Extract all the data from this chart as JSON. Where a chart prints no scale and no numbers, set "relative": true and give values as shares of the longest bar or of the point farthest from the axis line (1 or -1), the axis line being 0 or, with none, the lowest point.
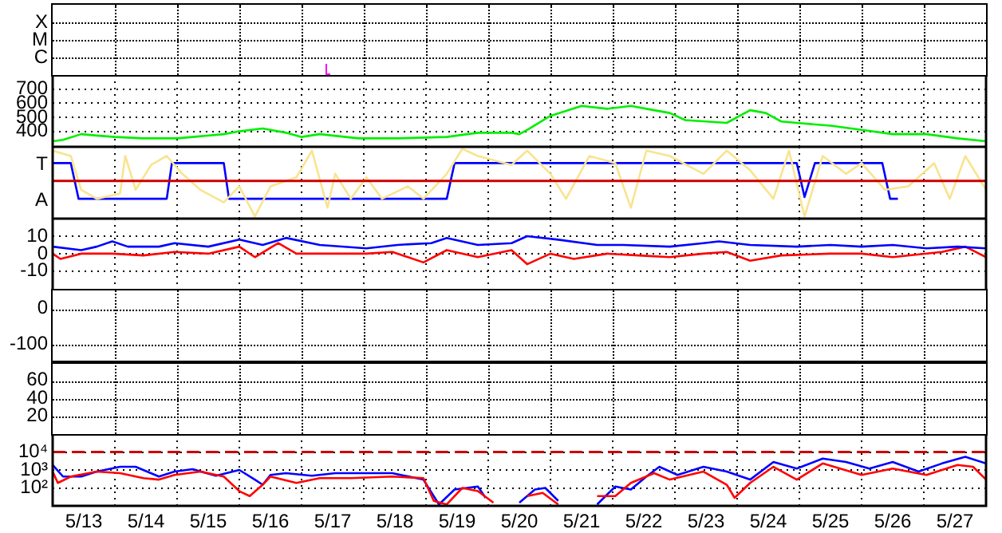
{
  "chart_data": [
    {
      "type": "other",
      "annotations": [
        "X",
        "M",
        "C"
      ]
    },
    {
      "type": "line",
      "grid": true,
      "tick_labels": "y",
      "xlim": [
        "--05-13",
        "--05-28"
      ],
      "xticks": [
        {
          "value": "--05-13",
          "label": null
        },
        {
          "value": "--05-14",
          "label": null
        },
        {
          "value": "--05-15",
          "label": null
        },
        {
          "value": "--05-16",
          "label": null
        },
        {
          "value": "--05-17",
          "label": null
        },
        {
          "value": "--05-18",
          "label": null
        },
        {
          "value": "--05-19",
          "label": null
        },
        {
          "value": "--05-20",
          "label": null
        },
        {
          "value": "--05-21",
          "label": null
        },
        {
          "value": "--05-22",
          "label": null
        },
        {
          "value": "--05-23",
          "label": null
        },
        {
          "value": "--05-24",
          "label": null
        },
        {
          "value": "--05-25",
          "label": null
        },
        {
          "value": "--05-26",
          "label": null
        },
        {
          "value": "--05-27",
          "label": null
        },
        {
          "value": "--05-28",
          "label": null
        }
      ],
      "ylim": [
        290,
        800
      ],
      "yticks": [
        400,
        500,
        600,
        700
      ],
      "series": [
        {
          "color": "#00ee00",
          "x": [
            "--05-13T00:00",
            "--05-13T04:00",
            "--05-13T11:00",
            "--05-13T17:00",
            "--05-14T00:00",
            "--05-14T11:00",
            "--05-15T00:00",
            "--05-15T18:00",
            "--05-16T00:00",
            "--05-16T09:00",
            "--05-16T18:00",
            "--05-17T00:00",
            "--05-17T07:00",
            "--05-17T22:00",
            "--05-18T13:00",
            "--05-19T08:00",
            "--05-19T20:00",
            "--05-20T09:00",
            "--05-20T12:00",
            "--05-20T15:00",
            "--05-21T00:00",
            "--05-21T12:00",
            "--05-21T22:00",
            "--05-22T07:00",
            "--05-22T16:00",
            "--05-22T22:00",
            "--05-23T04:00",
            "--05-23T20:00",
            "--05-24T05:00",
            "--05-24T11:00",
            "--05-24T17:00",
            "--05-24T23:00",
            "--05-25T12:00",
            "--05-26T00:00",
            "--05-26T12:00",
            "--05-27T01:00",
            "--05-27T13:00",
            "--05-28T00:00"
          ],
          "values": [
            330,
            340,
            380,
            370,
            360,
            350,
            350,
            380,
            400,
            420,
            390,
            360,
            380,
            350,
            350,
            360,
            390,
            390,
            380,
            410,
            510,
            580,
            560,
            580,
            550,
            530,
            480,
            460,
            550,
            530,
            470,
            460,
            440,
            410,
            380,
            380,
            350,
            330
          ]
        }
      ]
    },
    {
      "type": "line",
      "relative": true,
      "grid": true,
      "tick_labels": false,
      "annotations": [
        "T",
        "A"
      ],
      "xlim": [
        "--05-13",
        "--05-28"
      ],
      "xticks": [
        {
          "value": "--05-13",
          "label": null
        },
        {
          "value": "--05-14",
          "label": null
        },
        {
          "value": "--05-15",
          "label": null
        },
        {
          "value": "--05-16",
          "label": null
        },
        {
          "value": "--05-17",
          "label": null
        },
        {
          "value": "--05-18",
          "label": null
        },
        {
          "value": "--05-19",
          "label": null
        },
        {
          "value": "--05-20",
          "label": null
        },
        {
          "value": "--05-21",
          "label": null
        },
        {
          "value": "--05-22",
          "label": null
        },
        {
          "value": "--05-23",
          "label": null
        },
        {
          "value": "--05-24",
          "label": null
        },
        {
          "value": "--05-25",
          "label": null
        },
        {
          "value": "--05-26",
          "label": null
        },
        {
          "value": "--05-27",
          "label": null
        },
        {
          "value": "--05-28",
          "label": null
        }
      ],
      "ref_lines": [
        {
          "axis": "y",
          "value": 0,
          "color": "#cc0000"
        }
      ],
      "series": [
        {
          "color": "#f8e490",
          "x": [
            "--05-13T00:00",
            "--05-13T07:00",
            "--05-13T11:00",
            "--05-13T17:00",
            "--05-14T02:00",
            "--05-14T04:00",
            "--05-14T08:00",
            "--05-14T14:00",
            "--05-14T20:00",
            "--05-15T02:00",
            "--05-15T09:00",
            "--05-15T18:00",
            "--05-16T00:00",
            "--05-16T06:00",
            "--05-16T12:00",
            "--05-16T22:00",
            "--05-17T04:00",
            "--05-17T10:00",
            "--05-17T13:00",
            "--05-17T19:00",
            "--05-18T01:00",
            "--05-18T07:00",
            "--05-18T17:00",
            "--05-18T23:00",
            "--05-19T08:00",
            "--05-19T14:00",
            "--05-19T20:00",
            "--05-20T09:00",
            "--05-20T15:00",
            "--05-21T00:00",
            "--05-21T06:00",
            "--05-21T15:00",
            "--05-22T01:00",
            "--05-22T07:00",
            "--05-22T13:00",
            "--05-22T22:00",
            "--05-23T11:00",
            "--05-23T20:00",
            "--05-24T05:00",
            "--05-24T14:00",
            "--05-24T20:00",
            "--05-25T02:00",
            "--05-25T09:00",
            "--05-25T18:00",
            "--05-26T00:00",
            "--05-26T09:00",
            "--05-26T18:00",
            "--05-27T04:00",
            "--05-27T10:00",
            "--05-27T16:00",
            "--05-28T00:00"
          ],
          "values": [
            0.85,
            0.7,
            -0.25,
            -0.5,
            -0.35,
            0.7,
            -0.25,
            0.45,
            0.7,
            0.2,
            -0.25,
            -0.6,
            -0.15,
            -1,
            -0.15,
            0.1,
            0.85,
            -0.75,
            0.2,
            -0.5,
            0.1,
            -0.5,
            -0.15,
            -0.5,
            0.2,
            0.9,
            0.7,
            0.45,
            0.85,
            0.2,
            -0.5,
            0.7,
            0.5,
            -0.75,
            0.85,
            0.7,
            0.2,
            0.85,
            0.3,
            -0.5,
            0.85,
            -1,
            0.7,
            0.2,
            0.5,
            -0.25,
            -0.15,
            0.5,
            -0.5,
            0.7,
            -0.25
          ]
        },
        {
          "color": "#0000ff",
          "x": [
            "--05-13T00:00",
            "--05-13T07:00",
            "--05-13T10:00",
            "--05-14T20:00",
            "--05-14T22:00",
            "--05-15T18:00",
            "--05-15T20:00",
            "--05-19T08:00",
            "--05-19T11:00",
            "--05-24T23:00",
            "--05-25T02:00",
            "--05-25T06:00",
            "--05-26T08:00",
            "--05-26T11:00",
            "--05-26T14:00"
          ],
          "values": [
            0.5,
            0.5,
            -0.5,
            -0.5,
            0.5,
            0.5,
            -0.5,
            -0.5,
            0.5,
            0.5,
            -0.45,
            0.5,
            0.5,
            -0.5,
            -0.5
          ]
        }
      ]
    },
    {
      "type": "line",
      "grid": true,
      "tick_labels": "y",
      "xlim": [
        "--05-13",
        "--05-28"
      ],
      "xticks": [
        {
          "value": "--05-13",
          "label": null
        },
        {
          "value": "--05-14",
          "label": null
        },
        {
          "value": "--05-15",
          "label": null
        },
        {
          "value": "--05-16",
          "label": null
        },
        {
          "value": "--05-17",
          "label": null
        },
        {
          "value": "--05-18",
          "label": null
        },
        {
          "value": "--05-19",
          "label": null
        },
        {
          "value": "--05-20",
          "label": null
        },
        {
          "value": "--05-21",
          "label": null
        },
        {
          "value": "--05-22",
          "label": null
        },
        {
          "value": "--05-23",
          "label": null
        },
        {
          "value": "--05-24",
          "label": null
        },
        {
          "value": "--05-25",
          "label": null
        },
        {
          "value": "--05-26",
          "label": null
        },
        {
          "value": "--05-27",
          "label": null
        },
        {
          "value": "--05-28",
          "label": null
        }
      ],
      "ylim": [
        -21,
        20
      ],
      "yticks": [
        10,
        0,
        -10
      ],
      "series": [
        {
          "color": "#0000ff",
          "x": [
            "--05-13T00:00",
            "--05-13T11:00",
            "--05-13T17:00",
            "--05-13T23:00",
            "--05-14T05:00",
            "--05-14T17:00",
            "--05-14T23:00",
            "--05-15T12:00",
            "--05-16T00:00",
            "--05-16T09:00",
            "--05-16T18:00",
            "--05-17T07:00",
            "--05-18T01:00",
            "--05-18T13:00",
            "--05-19T02:00",
            "--05-19T08:00",
            "--05-19T20:00",
            "--05-20T09:00",
            "--05-20T15:00",
            "--05-21T03:00",
            "--05-21T18:00",
            "--05-22T04:00",
            "--05-22T22:00",
            "--05-23T11:00",
            "--05-23T17:00",
            "--05-24T05:00",
            "--05-24T23:00",
            "--05-25T12:00",
            "--05-26T00:00",
            "--05-26T12:00",
            "--05-27T01:00",
            "--05-27T13:00",
            "--05-28T00:00"
          ],
          "values": [
            4,
            2,
            4,
            7,
            4,
            4,
            6,
            4,
            8,
            5,
            9,
            5,
            3,
            5,
            6,
            9,
            5,
            6,
            10,
            8,
            5,
            5,
            4,
            6,
            7,
            5,
            4,
            5,
            4,
            5,
            3,
            4,
            3
          ]
        },
        {
          "color": "#ff0000",
          "x": [
            "--05-13T00:00",
            "--05-13T03:00",
            "--05-13T11:00",
            "--05-13T23:00",
            "--05-14T11:00",
            "--05-14T23:00",
            "--05-15T12:00",
            "--05-16T00:00",
            "--05-16T06:00",
            "--05-16T15:00",
            "--05-16T22:00",
            "--05-17T07:00",
            "--05-18T01:00",
            "--05-18T11:00",
            "--05-18T23:00",
            "--05-19T08:00",
            "--05-19T20:00",
            "--05-20T09:00",
            "--05-20T15:00",
            "--05-21T00:00",
            "--05-21T09:00",
            "--05-21T22:00",
            "--05-22T10:00",
            "--05-22T22:00",
            "--05-23T11:00",
            "--05-23T20:00",
            "--05-24T05:00",
            "--05-24T17:00",
            "--05-25T12:00",
            "--05-26T00:00",
            "--05-26T12:00",
            "--05-27T07:00",
            "--05-27T16:00",
            "--05-28T00:00"
          ],
          "values": [
            0,
            -3,
            0,
            0,
            -1,
            1,
            0,
            4,
            -2,
            6,
            0,
            0,
            0,
            1,
            -5,
            2,
            -2,
            2,
            -6,
            0,
            -3,
            0,
            -1,
            -2,
            0,
            1,
            -4,
            -1,
            0,
            0,
            -2,
            1,
            4,
            -2
          ]
        }
      ]
    },
    {
      "type": "other",
      "annotations": [
        "0",
        "-100"
      ]
    },
    {
      "type": "other",
      "annotations": [
        "60",
        "40",
        "20"
      ]
    },
    {
      "type": "line",
      "grid": true,
      "log": "y",
      "xlim": [
        "--05-13",
        "--05-28"
      ],
      "xticks": [
        {
          "value": "--05-13",
          "label": null
        },
        {
          "value": "--05-13T12:00",
          "label": "5/13"
        },
        {
          "value": "--05-14",
          "label": null
        },
        {
          "value": "--05-14T12:00",
          "label": "5/14"
        },
        {
          "value": "--05-15",
          "label": null
        },
        {
          "value": "--05-15T12:00",
          "label": "5/15"
        },
        {
          "value": "--05-16",
          "label": null
        },
        {
          "value": "--05-16T12:00",
          "label": "5/16"
        },
        {
          "value": "--05-17",
          "label": null
        },
        {
          "value": "--05-17T12:00",
          "label": "5/17"
        },
        {
          "value": "--05-18",
          "label": null
        },
        {
          "value": "--05-18T12:00",
          "label": "5/18"
        },
        {
          "value": "--05-19",
          "label": null
        },
        {
          "value": "--05-19T12:00",
          "label": "5/19"
        },
        {
          "value": "--05-20",
          "label": null
        },
        {
          "value": "--05-20T12:00",
          "label": "5/20"
        },
        {
          "value": "--05-21",
          "label": null
        },
        {
          "value": "--05-21T12:00",
          "label": "5/21"
        },
        {
          "value": "--05-22",
          "label": null
        },
        {
          "value": "--05-22T12:00",
          "label": "5/22"
        },
        {
          "value": "--05-23",
          "label": null
        },
        {
          "value": "--05-23T12:00",
          "label": "5/23"
        },
        {
          "value": "--05-24",
          "label": null
        },
        {
          "value": "--05-24T12:00",
          "label": "5/24"
        },
        {
          "value": "--05-25",
          "label": null
        },
        {
          "value": "--05-25T12:00",
          "label": "5/25"
        },
        {
          "value": "--05-26",
          "label": null
        },
        {
          "value": "--05-26T12:00",
          "label": "5/26"
        },
        {
          "value": "--05-27",
          "label": null
        },
        {
          "value": "--05-27T12:00",
          "label": "5/27"
        },
        {
          "value": "--05-28",
          "label": null
        }
      ],
      "ylim": [
        10,
        100000
      ],
      "yticks": [
        {
          "value": 10000,
          "label": "10⁴"
        },
        {
          "value": 1000,
          "label": "10³"
        },
        {
          "value": 100,
          "label": "10²"
        }
      ],
      "ref_lines": [
        {
          "axis": "y",
          "value": 10000,
          "color": "#cc0000",
          "line_style": "dashed"
        }
      ],
      "series": [
        {
          "color": "#ff0000",
          "x": [
            "--05-13T00:00",
            "--05-13T02:00",
            "--05-13T07:00",
            "--05-13T17:00",
            "--05-14T02:00",
            "--05-14T11:00",
            "--05-14T17:00",
            "--05-14T23:00",
            "--05-15T09:00",
            "--05-15T18:00",
            "--05-16T00:00",
            "--05-16T04:00",
            "--05-16T09:00",
            "--05-16T12:00",
            "--05-16T22:00",
            "--05-17T07:00",
            "--05-17T19:00",
            "--05-18T11:00",
            "--05-18T23:00",
            "--05-19T03:00",
            "--05-19T08:00",
            "--05-19T14:00",
            "--05-19T20:00",
            "--05-20T02:00",
            "--05-20T09:00",
            "--05-20T15:00",
            "--05-20T21:00",
            "--05-21T03:00",
            "--05-21T12:00",
            "--05-21T18:00",
            "--05-22T01:00",
            "--05-22T07:00",
            "--05-22T16:00",
            "--05-22T22:00",
            "--05-23T11:00",
            "--05-23T20:00",
            "--05-23T23:00",
            "--05-24T05:00",
            "--05-24T14:00",
            "--05-24T23:00",
            "--05-25T09:00",
            "--05-26T00:00",
            "--05-26T12:00",
            "--05-27T01:00",
            "--05-27T13:00",
            "--05-27T19:00",
            "--05-28T00:00"
          ],
          "values": [
            810,
            190,
            430,
            810,
            660,
            350,
            290,
            530,
            810,
            430,
            66,
            35,
            150,
            430,
            190,
            350,
            350,
            430,
            350,
            19,
            12,
            100,
            66,
            15,
            null,
            35,
            53,
            12,
            null,
            35,
            35,
            190,
            660,
            290,
            810,
            150,
            28,
            190,
            1500,
            290,
            2300,
            530,
            1200,
            530,
            1900,
            1500,
            290
          ]
        },
        {
          "color": "#0000ff",
          "x": [
            "--05-13T00:00",
            "--05-13T04:00",
            "--05-13T11:00",
            "--05-13T17:00",
            "--05-14T02:00",
            "--05-14T08:00",
            "--05-14T17:00",
            "--05-14T23:00",
            "--05-15T06:00",
            "--05-15T15:00",
            "--05-16T00:00",
            "--05-16T06:00",
            "--05-16T09:00",
            "--05-16T12:00",
            "--05-16T18:00",
            "--05-17T04:00",
            "--05-17T13:00",
            "--05-17T19:00",
            "--05-18T11:00",
            "--05-18T23:00",
            "--05-19T05:00",
            "--05-19T11:00",
            "--05-19T20:00",
            "--05-19T23:00",
            "--05-20T06:00",
            "--05-20T12:00",
            "--05-20T18:00",
            "--05-20T22:00",
            "--05-21T03:00",
            "--05-21T09:00",
            "--05-21T18:00",
            "--05-22T01:00",
            "--05-22T07:00",
            "--05-22T13:00",
            "--05-22T18:00",
            "--05-23T01:00",
            "--05-23T11:00",
            "--05-23T20:00",
            "--05-24T05:00",
            "--05-24T14:00",
            "--05-24T23:00",
            "--05-25T09:00",
            "--05-25T18:00",
            "--05-26T03:00",
            "--05-26T12:00",
            "--05-26T22:00",
            "--05-27T07:00",
            "--05-27T16:00",
            "--05-28T00:00"
          ],
          "values": [
            1900,
            430,
            430,
            810,
            1500,
            1500,
            430,
            810,
            1100,
            480,
            1000,
            290,
            150,
            530,
            660,
            480,
            660,
            660,
            660,
            290,
            12,
            81,
            120,
            28,
            null,
            15,
            81,
            100,
            19,
            null,
            12,
            120,
            81,
            430,
            1500,
            530,
            1500,
            810,
            290,
            2800,
            1200,
            4300,
            2800,
            1200,
            2800,
            810,
            2300,
            5400,
            2300
          ]
        }
      ]
    }
  ]
}
